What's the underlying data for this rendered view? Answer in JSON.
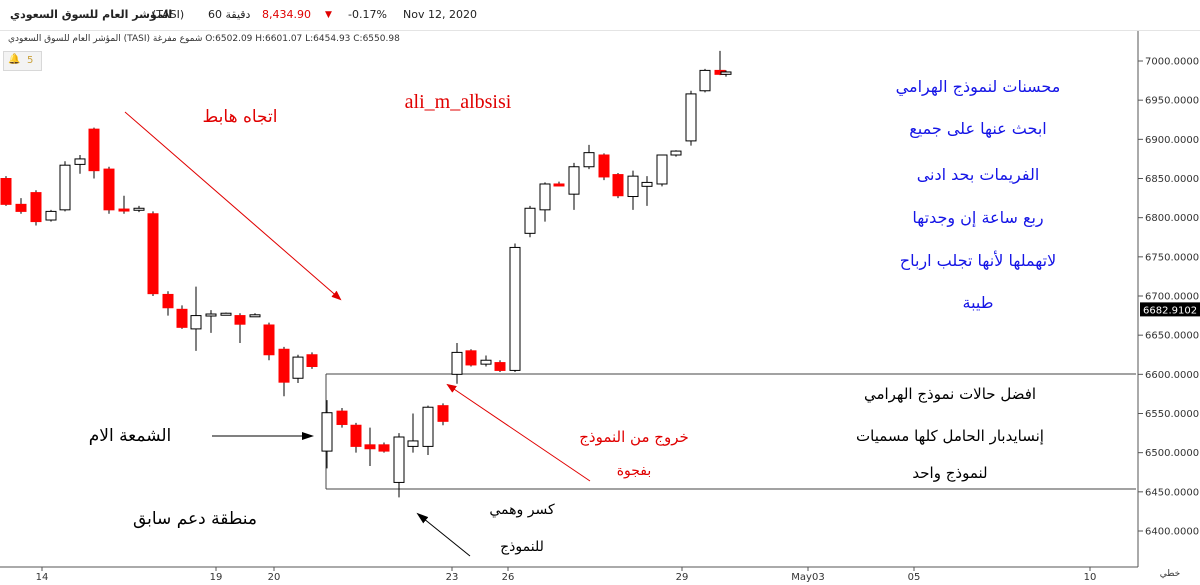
{
  "header": {
    "title": "المؤشر العام للسوق السعودي",
    "symbol": "(TASI)",
    "timeframe": "60 دقيقة",
    "price": "8,434.90",
    "change_pct": "-0.17%",
    "date": "Nov 12, 2020"
  },
  "ohlc_line": "المؤشر العام للسوق السعودي (TASI) شموع مفرغة O:6502.09 H:6601.07 L:6454.93 C:6550.98",
  "alert": {
    "icon": "bell-icon",
    "count": "5"
  },
  "colors": {
    "up": "#ffffff",
    "down": "#ff0000",
    "wick": "#000000",
    "annotation_blue": "#1515e6",
    "annotation_red": "#e00000",
    "price_tag": "#000000"
  },
  "chart_data": {
    "type": "candlestick",
    "ylim": [
      6370,
      7030
    ],
    "y_ticks": [
      "7000.0000",
      "6950.0000",
      "6900.0000",
      "6850.0000",
      "6800.0000",
      "6750.0000",
      "6700.0000",
      "6650.0000",
      "6600.0000",
      "6550.0000",
      "6500.0000",
      "6450.0000",
      "6400.0000"
    ],
    "x_ticks": [
      "14",
      "19",
      "20",
      "23",
      "26",
      "29",
      "May03",
      "05",
      "10"
    ],
    "last_price": "6682.9102",
    "right_corner_label": "خطي",
    "candles": [
      {
        "o": 6850,
        "h": 6853,
        "l": 6815,
        "c": 6817
      },
      {
        "o": 6817,
        "h": 6825,
        "l": 6805,
        "c": 6808
      },
      {
        "o": 6832,
        "h": 6835,
        "l": 6790,
        "c": 6795
      },
      {
        "o": 6797,
        "h": 6810,
        "l": 6795,
        "c": 6808
      },
      {
        "o": 6810,
        "h": 6872,
        "l": 6808,
        "c": 6867
      },
      {
        "o": 6868,
        "h": 6880,
        "l": 6856,
        "c": 6875
      },
      {
        "o": 6913,
        "h": 6915,
        "l": 6850,
        "c": 6860
      },
      {
        "o": 6862,
        "h": 6865,
        "l": 6805,
        "c": 6810
      },
      {
        "o": 6811,
        "h": 6828,
        "l": 6805,
        "c": 6810
      },
      {
        "o": 6810,
        "h": 6815,
        "l": 6807,
        "c": 6812
      },
      {
        "o": 6805,
        "h": 6808,
        "l": 6700,
        "c": 6703
      },
      {
        "o": 6702,
        "h": 6706,
        "l": 6675,
        "c": 6685
      },
      {
        "o": 6683,
        "h": 6688,
        "l": 6658,
        "c": 6660
      },
      {
        "o": 6658,
        "h": 6712,
        "l": 6630,
        "c": 6675
      },
      {
        "o": 6675,
        "h": 6682,
        "l": 6653,
        "c": 6677
      },
      {
        "o": 6678,
        "h": 6679,
        "l": 6677,
        "c": 6678
      },
      {
        "o": 6675,
        "h": 6678,
        "l": 6640,
        "c": 6664
      },
      {
        "o": 6675,
        "h": 6678,
        "l": 6674,
        "c": 6676
      },
      {
        "o": 6663,
        "h": 6666,
        "l": 6618,
        "c": 6625
      },
      {
        "o": 6632,
        "h": 6635,
        "l": 6572,
        "c": 6590
      },
      {
        "o": 6595,
        "h": 6625,
        "l": 6589,
        "c": 6622
      },
      {
        "o": 6625,
        "h": 6628,
        "l": 6607,
        "c": 6610
      },
      {
        "o": 6502,
        "h": 6567,
        "l": 6480,
        "c": 6551
      },
      {
        "o": 6553,
        "h": 6557,
        "l": 6532,
        "c": 6536
      },
      {
        "o": 6535,
        "h": 6538,
        "l": 6500,
        "c": 6508
      },
      {
        "o": 6510,
        "h": 6532,
        "l": 6483,
        "c": 6505
      },
      {
        "o": 6510,
        "h": 6513,
        "l": 6500,
        "c": 6502
      },
      {
        "o": 6462,
        "h": 6525,
        "l": 6443,
        "c": 6520
      },
      {
        "o": 6508,
        "h": 6550,
        "l": 6500,
        "c": 6515
      },
      {
        "o": 6508,
        "h": 6560,
        "l": 6497,
        "c": 6558
      },
      {
        "o": 6560,
        "h": 6563,
        "l": 6535,
        "c": 6540
      },
      {
        "o": 6600,
        "h": 6640,
        "l": 6588,
        "c": 6628
      },
      {
        "o": 6630,
        "h": 6632,
        "l": 6610,
        "c": 6612
      },
      {
        "o": 6613,
        "h": 6624,
        "l": 6610,
        "c": 6618
      },
      {
        "o": 6615,
        "h": 6618,
        "l": 6603,
        "c": 6605
      },
      {
        "o": 6605,
        "h": 6767,
        "l": 6603,
        "c": 6762
      },
      {
        "o": 6780,
        "h": 6815,
        "l": 6775,
        "c": 6812
      },
      {
        "o": 6810,
        "h": 6845,
        "l": 6795,
        "c": 6843
      },
      {
        "o": 6843,
        "h": 6846,
        "l": 6840,
        "c": 6842
      },
      {
        "o": 6830,
        "h": 6870,
        "l": 6810,
        "c": 6865
      },
      {
        "o": 6865,
        "h": 6893,
        "l": 6862,
        "c": 6883
      },
      {
        "o": 6880,
        "h": 6882,
        "l": 6848,
        "c": 6852
      },
      {
        "o": 6855,
        "h": 6857,
        "l": 6825,
        "c": 6828
      },
      {
        "o": 6827,
        "h": 6860,
        "l": 6810,
        "c": 6853
      },
      {
        "o": 6840,
        "h": 6853,
        "l": 6815,
        "c": 6845
      },
      {
        "o": 6843,
        "h": 6880,
        "l": 6840,
        "c": 6880
      },
      {
        "o": 6880,
        "h": 6886,
        "l": 6878,
        "c": 6885
      },
      {
        "o": 6898,
        "h": 6962,
        "l": 6892,
        "c": 6958
      },
      {
        "o": 6962,
        "h": 6990,
        "l": 6960,
        "c": 6988
      },
      {
        "o": 6988,
        "h": 7013,
        "l": 6982,
        "c": 6983
      },
      {
        "o": 6983,
        "h": 6988,
        "l": 6980,
        "c": 6986
      }
    ]
  },
  "annotations": {
    "watermark": "ali_m_albsisi",
    "down_trend": "اتجاه هابط",
    "mother_candle": "الشمعة الام",
    "support_zone": "منطقة دعم سابق",
    "false_break_1": "كسر وهمي",
    "false_break_2": "للنموذج",
    "gap_exit_1": "خروج من النموذج",
    "gap_exit_2": "بفجوة",
    "tips": [
      "محسنات لنموذج الهرامي",
      "ابحث عنها على جميع",
      "الفريمات بحد ادنى",
      "ربع ساعة إن وجدتها",
      "لاتهملها لأنها تجلب ارباح",
      "طيبة"
    ],
    "best_cases": [
      "افضل حالات نموذج الهرامي",
      "إنسايدبار الحامل كلها مسميات",
      "لنموذج واحد"
    ]
  }
}
